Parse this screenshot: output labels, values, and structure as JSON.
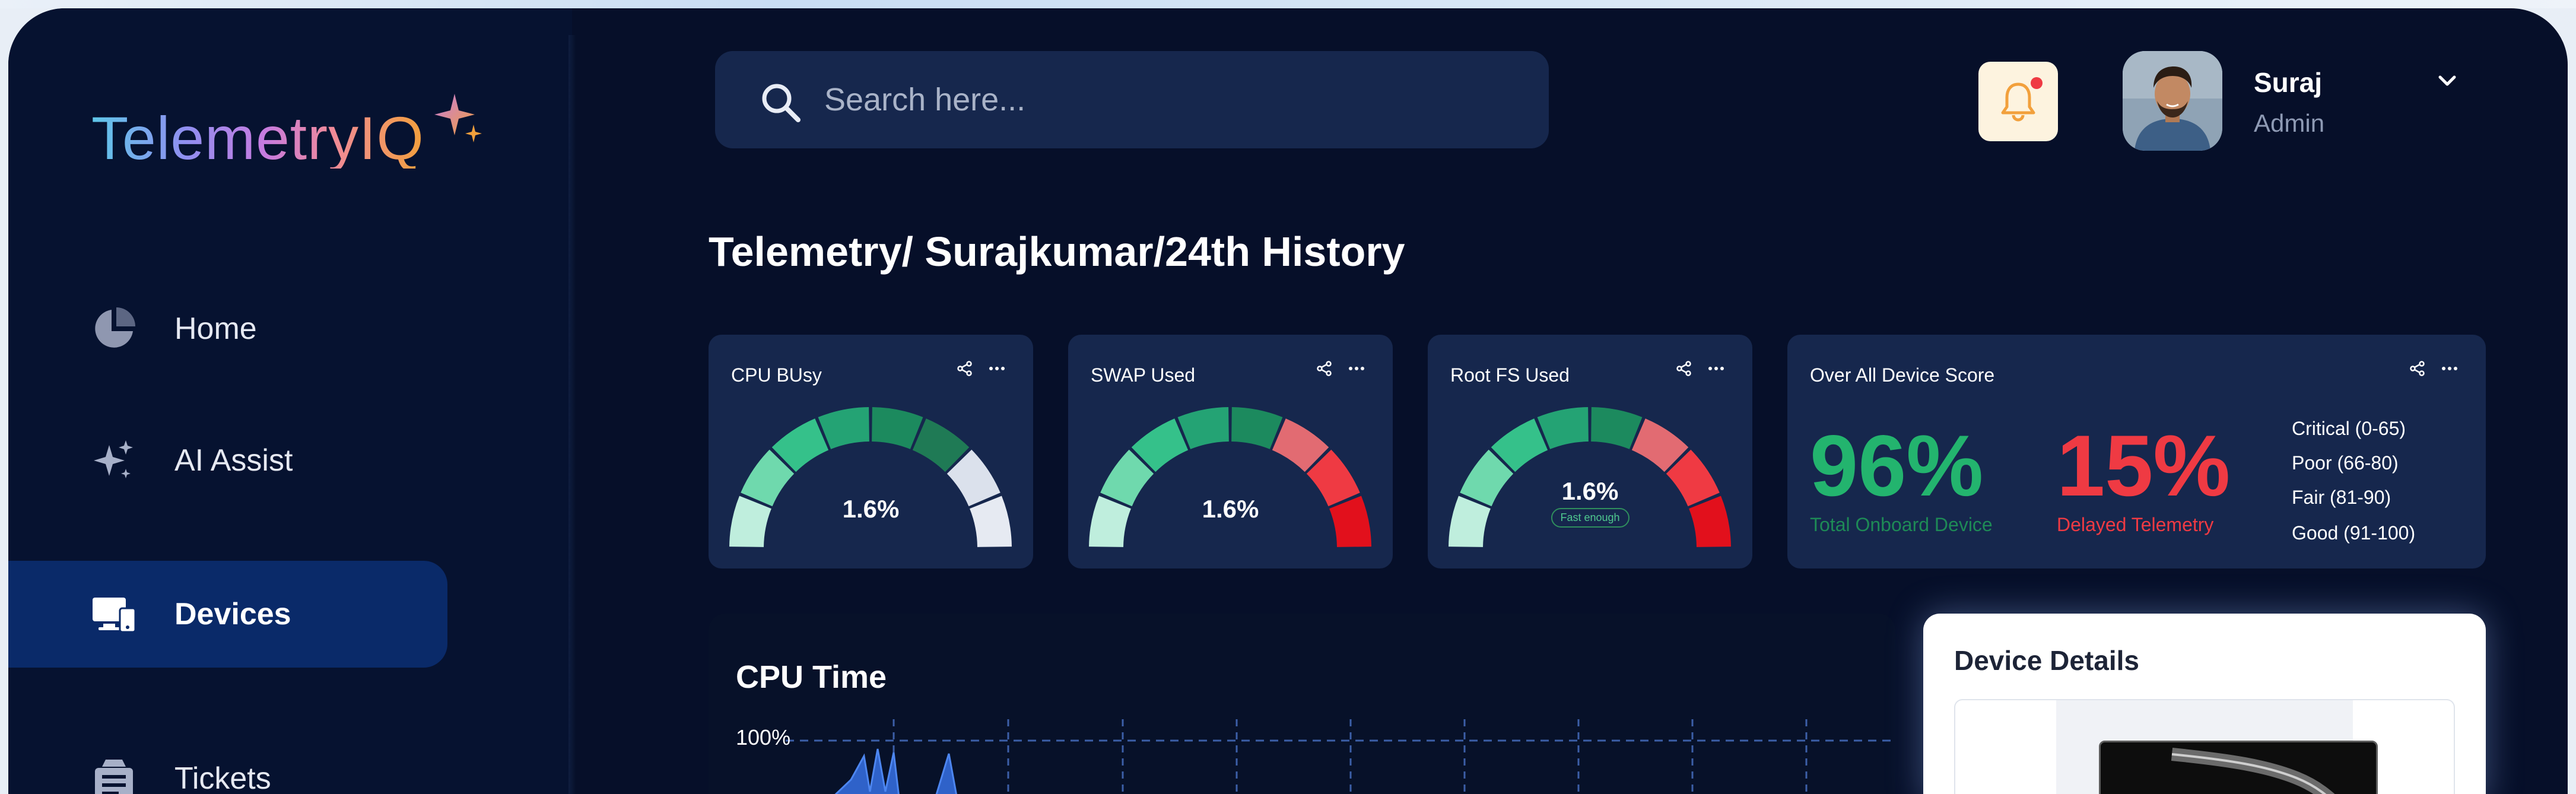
{
  "app": {
    "logo_text": "TelemetryIQ",
    "accent": "#0a2a69",
    "background": "#060f29",
    "card_background": "#16274d"
  },
  "sidebar": {
    "items": [
      {
        "label": "Home",
        "icon": "pie-chart-icon",
        "active": false
      },
      {
        "label": "AI Assist",
        "icon": "sparkles-icon",
        "active": false
      },
      {
        "label": "Devices",
        "icon": "devices-icon",
        "active": true
      },
      {
        "label": "Tickets",
        "icon": "ticket-icon",
        "active": false
      }
    ]
  },
  "header": {
    "search_placeholder": "Search here...",
    "notification_icon": "bell-icon",
    "user": {
      "name": "Suraj",
      "role": "Admin"
    }
  },
  "breadcrumb_title": "Telemetry/ Surajkumar/24th History",
  "cards": {
    "cpu": {
      "title": "CPU BUsy",
      "value": "1.6%"
    },
    "swap": {
      "title": "SWAP Used",
      "value": "1.6%"
    },
    "rootfs": {
      "title": "Root FS Used",
      "value": "1.6%",
      "tag": "Fast enough"
    },
    "score": {
      "title": "Over All Device Score",
      "onboard_value": "96%",
      "onboard_label": "Total Onboard Device",
      "onboard_color": "#23b46e",
      "delayed_value": "15%",
      "delayed_label": "Delayed  Telemetry",
      "delayed_color": "#ef3a43",
      "legend": [
        "Critical (0-65)",
        "Poor (66-80)",
        "Fair (81-90)",
        "Good (91-100)"
      ]
    }
  },
  "cpu_time": {
    "title": "CPU Time",
    "tick_label": "100%"
  },
  "device_details": {
    "title": "Device Details"
  }
}
